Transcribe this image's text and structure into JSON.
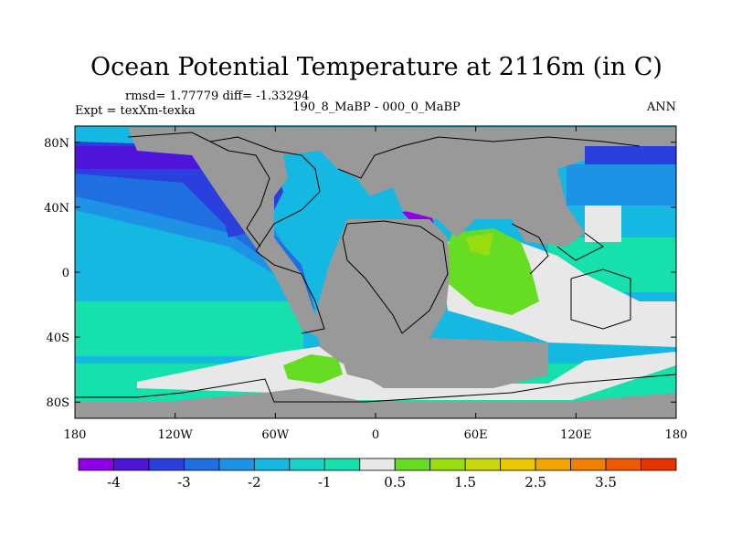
{
  "title": "Ocean Potential Temperature at 2116m (in C)",
  "stats": "rmsd= 1.77779 diff= -1.33294",
  "experiment": "Expt = texXm-texka",
  "comparison": "190_8_MaBP - 000_0_MaBP",
  "season": "ANN",
  "map": {
    "projection": "cylindrical-equidistant",
    "lon_range": [
      -180,
      180
    ],
    "lat_range": [
      -90,
      90
    ],
    "land_color": "#999999",
    "lon_ticks": [
      {
        "value": -180,
        "label": "180"
      },
      {
        "value": -120,
        "label": "120W"
      },
      {
        "value": -60,
        "label": "60W"
      },
      {
        "value": 0,
        "label": "0"
      },
      {
        "value": 60,
        "label": "60E"
      },
      {
        "value": 120,
        "label": "120E"
      },
      {
        "value": 180,
        "label": "180"
      }
    ],
    "lat_ticks": [
      {
        "value": 80,
        "label": "80N"
      },
      {
        "value": 40,
        "label": "40N"
      },
      {
        "value": 0,
        "label": "0"
      },
      {
        "value": -40,
        "label": "40S"
      },
      {
        "value": -80,
        "label": "80S"
      }
    ]
  },
  "colorbar": {
    "colors": [
      "#8f00e6",
      "#4e14d9",
      "#2a3fdc",
      "#1f6fe0",
      "#1e93e6",
      "#14b8e0",
      "#1ad2c8",
      "#16e0ac",
      "#e8e8e8",
      "#66dd22",
      "#99dd11",
      "#c8d80a",
      "#e8c800",
      "#f0a800",
      "#f08000",
      "#ee5a00",
      "#e83200"
    ],
    "labels": [
      {
        "text": "-4",
        "after": 1
      },
      {
        "text": "-3",
        "after": 3
      },
      {
        "text": "-2",
        "after": 5
      },
      {
        "text": "-1",
        "after": 7
      },
      {
        "text": "0.5",
        "after": 9
      },
      {
        "text": "1.5",
        "after": 11
      },
      {
        "text": "2.5",
        "after": 13
      },
      {
        "text": "3.5",
        "after": 15
      }
    ]
  }
}
